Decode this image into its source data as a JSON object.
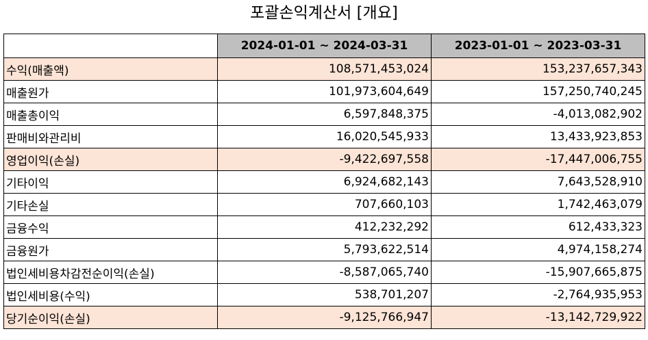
{
  "title": "포괄손익계산서 [개요]",
  "columns": [
    "",
    "2024-01-01 ~ 2024-03-31",
    "2023-01-01 ~ 2023-03-31"
  ],
  "highlight_color": "#fce4d6",
  "header_color": "#bfbfbf",
  "rows": [
    {
      "label": "수익(매출액)",
      "cur": "108,571,453,024",
      "prev": "153,237,657,343",
      "highlight": true
    },
    {
      "label": "매출원가",
      "cur": "101,973,604,649",
      "prev": "157,250,740,245",
      "highlight": false
    },
    {
      "label": "매출총이익",
      "cur": "6,597,848,375",
      "prev": "-4,013,082,902",
      "highlight": false
    },
    {
      "label": "판매비와관리비",
      "cur": "16,020,545,933",
      "prev": "13,433,923,853",
      "highlight": false
    },
    {
      "label": "영업이익(손실)",
      "cur": "-9,422,697,558",
      "prev": "-17,447,006,755",
      "highlight": true
    },
    {
      "label": "기타이익",
      "cur": "6,924,682,143",
      "prev": "7,643,528,910",
      "highlight": false
    },
    {
      "label": "기타손실",
      "cur": "707,660,103",
      "prev": "1,742,463,079",
      "highlight": false
    },
    {
      "label": "금융수익",
      "cur": "412,232,292",
      "prev": "612,433,323",
      "highlight": false
    },
    {
      "label": "금융원가",
      "cur": "5,793,622,514",
      "prev": "4,974,158,274",
      "highlight": false
    },
    {
      "label": "법인세비용차감전순이익(손실)",
      "cur": "-8,587,065,740",
      "prev": "-15,907,665,875",
      "highlight": false
    },
    {
      "label": "법인세비용(수익)",
      "cur": "538,701,207",
      "prev": "-2,764,935,953",
      "highlight": false
    },
    {
      "label": "당기순이익(손실)",
      "cur": "-9,125,766,947",
      "prev": "-13,142,729,922",
      "highlight": true
    }
  ]
}
